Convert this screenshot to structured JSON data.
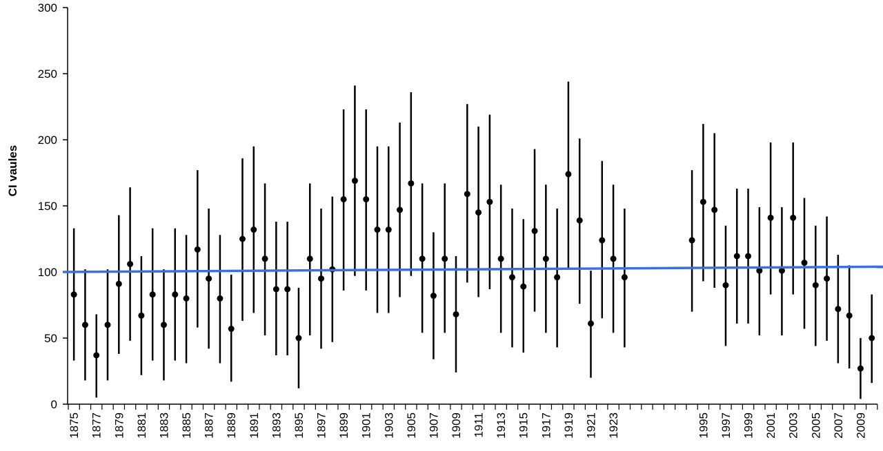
{
  "chart_data": {
    "type": "errorbar",
    "y_label": "CI vaules",
    "categories": [
      "1875",
      null,
      "1877",
      null,
      "1879",
      null,
      "1881",
      null,
      "1883",
      null,
      "1885",
      null,
      "1887",
      null,
      "1889",
      null,
      "1891",
      null,
      "1893",
      null,
      "1895",
      null,
      "1897",
      null,
      "1899",
      null,
      "1901",
      null,
      "1903",
      null,
      "1905",
      null,
      "1907",
      null,
      "1909",
      null,
      "1911",
      null,
      "1913",
      null,
      "1915",
      null,
      "1917",
      null,
      "1919",
      null,
      "1921",
      null,
      "1923",
      null,
      null,
      null,
      null,
      null,
      null,
      null,
      "1995",
      null,
      "1997",
      null,
      "1999",
      null,
      "2001",
      null,
      "2003",
      null,
      "2005",
      null,
      "2007",
      null,
      "2009",
      null
    ],
    "values": [
      83,
      60,
      37,
      60,
      91,
      106,
      67,
      83,
      60,
      83,
      80,
      117,
      95,
      80,
      57,
      125,
      132,
      110,
      87,
      87,
      50,
      110,
      95,
      102,
      155,
      169,
      155,
      132,
      132,
      147,
      167,
      110,
      82,
      110,
      68,
      159,
      145,
      153,
      110,
      96,
      89,
      131,
      110,
      96,
      174,
      139,
      61,
      124,
      110,
      96,
      null,
      null,
      null,
      null,
      null,
      124,
      153,
      147,
      90,
      112,
      112,
      101,
      141,
      101,
      141,
      107,
      90,
      95,
      72,
      67,
      27,
      50
    ],
    "high": [
      133,
      102,
      68,
      102,
      143,
      164,
      112,
      133,
      102,
      133,
      128,
      177,
      148,
      128,
      98,
      186,
      195,
      167,
      138,
      138,
      88,
      167,
      148,
      157,
      223,
      241,
      223,
      195,
      195,
      213,
      236,
      167,
      130,
      167,
      112,
      227,
      210,
      219,
      166,
      148,
      140,
      193,
      166,
      148,
      244,
      201,
      101,
      184,
      166,
      148,
      null,
      null,
      null,
      null,
      null,
      177,
      212,
      205,
      135,
      163,
      163,
      149,
      198,
      149,
      198,
      156,
      135,
      142,
      113,
      105,
      50,
      83
    ],
    "low": [
      33,
      18,
      5,
      18,
      38,
      48,
      22,
      33,
      18,
      33,
      31,
      58,
      42,
      31,
      17,
      63,
      69,
      52,
      37,
      37,
      12,
      52,
      42,
      47,
      86,
      97,
      86,
      69,
      69,
      81,
      97,
      54,
      34,
      54,
      24,
      92,
      81,
      87,
      54,
      43,
      39,
      70,
      54,
      43,
      103,
      76,
      20,
      65,
      54,
      43,
      null,
      null,
      null,
      null,
      null,
      70,
      93,
      88,
      44,
      61,
      61,
      52,
      83,
      52,
      83,
      57,
      44,
      48,
      31,
      27,
      4,
      16
    ],
    "color": "#000000",
    "trend": {
      "color": "#3a6fe0",
      "start": 100,
      "end": 104
    },
    "ylim": [
      0,
      300
    ],
    "yticks": [
      0,
      50,
      100,
      150,
      200,
      250,
      300
    ]
  }
}
